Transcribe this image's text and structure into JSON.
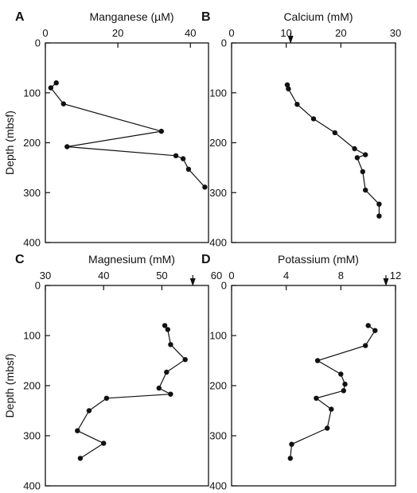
{
  "chart_data": [
    {
      "type": "line",
      "panel_label": "A",
      "title": "Manganese (µM)",
      "ylabel": "Depth (mbsf)",
      "xlim": [
        0,
        45
      ],
      "ylim": [
        0,
        400
      ],
      "y_inverted": true,
      "x_ticks": [
        "0",
        "20",
        "40"
      ],
      "x_tick_values": [
        0,
        20,
        40
      ],
      "y_ticks": [
        "0",
        "100",
        "200",
        "300",
        "400"
      ],
      "y_tick_values": [
        0,
        100,
        200,
        300,
        400
      ],
      "marker": null,
      "points": [
        [
          3,
          80
        ],
        [
          1.5,
          90
        ],
        [
          5,
          122
        ],
        [
          32,
          177
        ],
        [
          6,
          208
        ],
        [
          36,
          226
        ],
        [
          38,
          232
        ],
        [
          39.5,
          253
        ],
        [
          44,
          289
        ]
      ]
    },
    {
      "type": "line",
      "panel_label": "B",
      "title": "Calcium (mM)",
      "ylabel": "",
      "xlim": [
        0,
        30
      ],
      "ylim": [
        0,
        400
      ],
      "y_inverted": true,
      "x_ticks": [
        "0",
        "10",
        "20",
        "30"
      ],
      "x_tick_values": [
        0,
        10,
        20,
        30
      ],
      "y_ticks": [
        "0",
        "100",
        "200",
        "300",
        "400"
      ],
      "y_tick_values": [
        0,
        100,
        200,
        300,
        400
      ],
      "marker": 10.8,
      "points": [
        [
          10.2,
          84
        ],
        [
          10.4,
          92
        ],
        [
          12,
          123
        ],
        [
          15,
          152
        ],
        [
          18.9,
          180
        ],
        [
          22.5,
          212
        ],
        [
          24.5,
          224
        ],
        [
          23,
          230
        ],
        [
          24,
          258
        ],
        [
          24.5,
          295
        ],
        [
          27,
          323
        ],
        [
          27,
          347
        ]
      ]
    },
    {
      "type": "line",
      "panel_label": "C",
      "title": "Magnesium (mM)",
      "ylabel": "Depth (mbsf)",
      "xlim": [
        30,
        58
      ],
      "ylim": [
        0,
        400
      ],
      "y_inverted": true,
      "x_ticks": [
        "30",
        "40",
        "50",
        "60"
      ],
      "x_tick_values": [
        30,
        40,
        50,
        60
      ],
      "y_ticks": [
        "0",
        "100",
        "200",
        "300",
        "400"
      ],
      "y_tick_values": [
        0,
        100,
        200,
        300,
        400
      ],
      "marker": 55.3,
      "points": [
        [
          50.5,
          80
        ],
        [
          51,
          88
        ],
        [
          51.5,
          118
        ],
        [
          54,
          148
        ],
        [
          50.8,
          173
        ],
        [
          49.5,
          205
        ],
        [
          51.5,
          217
        ],
        [
          40.5,
          225
        ],
        [
          37.5,
          250
        ],
        [
          35.5,
          290
        ],
        [
          40,
          315
        ],
        [
          36,
          345
        ]
      ]
    },
    {
      "type": "line",
      "panel_label": "D",
      "title": "Potassium (mM)",
      "ylabel": "",
      "xlim": [
        0,
        12
      ],
      "ylim": [
        0,
        400
      ],
      "y_inverted": true,
      "x_ticks": [
        "0",
        "4",
        "8",
        "12"
      ],
      "x_tick_values": [
        0,
        4,
        8,
        12
      ],
      "y_ticks": [
        "0",
        "100",
        "200",
        "300",
        "400"
      ],
      "y_tick_values": [
        0,
        100,
        200,
        300,
        400
      ],
      "marker": 11.3,
      "points": [
        [
          10,
          80
        ],
        [
          10.5,
          90
        ],
        [
          9.8,
          120
        ],
        [
          6.3,
          150
        ],
        [
          8,
          177
        ],
        [
          8.3,
          197
        ],
        [
          8.2,
          210
        ],
        [
          6.2,
          225
        ],
        [
          7.3,
          247
        ],
        [
          7,
          285
        ],
        [
          4.4,
          317
        ],
        [
          4.3,
          345
        ]
      ]
    }
  ]
}
